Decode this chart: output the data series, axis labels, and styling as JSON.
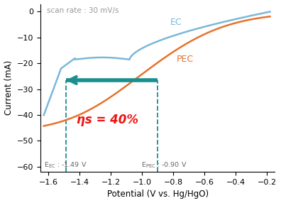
{
  "scan_rate_label": "scan rate : 30 mV/s",
  "xlabel": "Potential (V vs. Hg/HgO)",
  "ylabel": "Current (mA)",
  "xlim": [
    -1.65,
    -0.15
  ],
  "ylim": [
    -62,
    3
  ],
  "xticks": [
    -1.6,
    -1.4,
    -1.2,
    -1.0,
    -0.8,
    -0.6,
    -0.4,
    -0.2
  ],
  "yticks": [
    0,
    -10,
    -20,
    -30,
    -40,
    -50,
    -60
  ],
  "ec_color": "#7ab8d9",
  "pec_color": "#e8722a",
  "arrow_color": "#1a8f8f",
  "eta_color": "#ee1111",
  "annotation_color": "#666666",
  "E_EC": -1.49,
  "E_PEC": -0.9,
  "arrow_current": -26.5,
  "eta_label": "ηs = 40%",
  "EC_label": "EC",
  "PEC_label": "PEC",
  "background_color": "#ffffff",
  "figsize": [
    3.96,
    2.86
  ],
  "dpi": 100
}
